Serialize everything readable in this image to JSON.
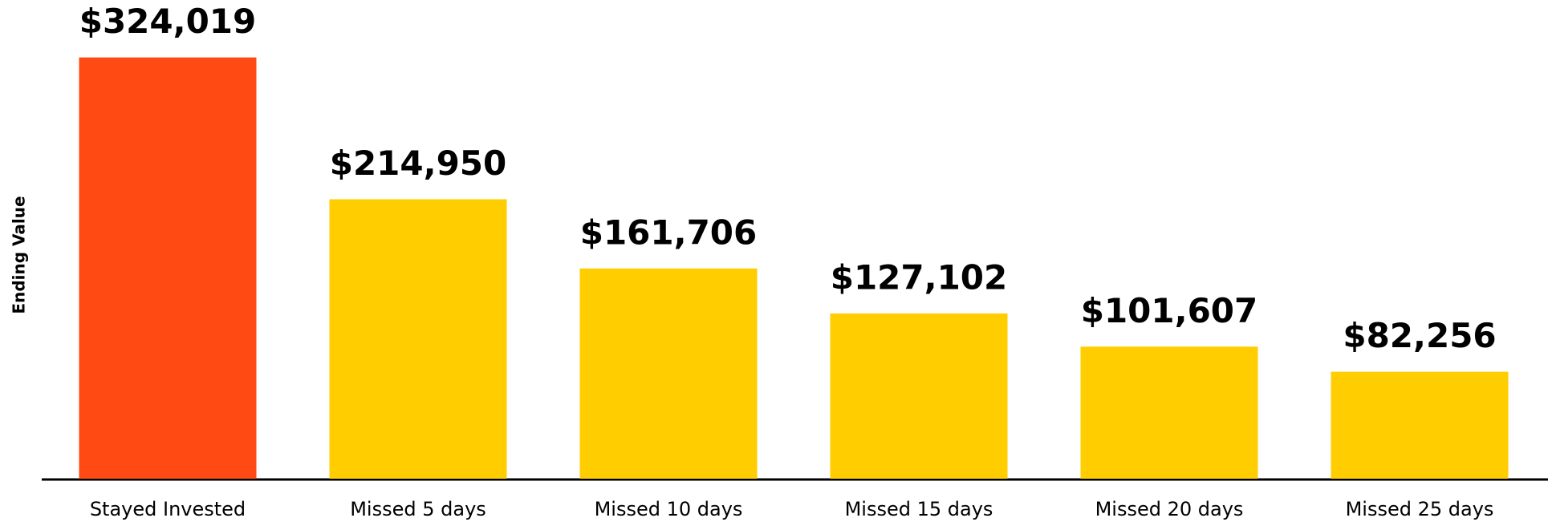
{
  "chart_data": {
    "type": "bar",
    "y_axis_label": "Ending Value",
    "categories": [
      "Stayed Invested",
      "Missed 5 days",
      "Missed 10 days",
      "Missed 15 days",
      "Missed 20 days",
      "Missed 25 days"
    ],
    "values": [
      324019,
      214950,
      161706,
      127102,
      101607,
      82256
    ],
    "value_labels": [
      "$324,019",
      "$214,950",
      "$161,706",
      "$127,102",
      "$101,607",
      "$82,256"
    ],
    "colors": [
      "#ff4a14",
      "#ffcd00",
      "#ffcd00",
      "#ffcd00",
      "#ffcd00",
      "#ffcd00"
    ],
    "ylim": [
      0,
      350000
    ]
  }
}
